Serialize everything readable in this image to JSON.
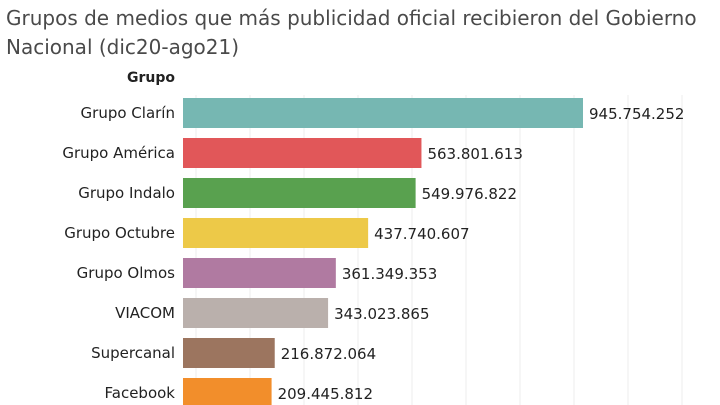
{
  "chart_data": {
    "type": "bar",
    "orientation": "horizontal",
    "title": "Grupos de medios que más publicidad oficial recibieron del Gobierno Nacional (dic20-ago21)",
    "row_header": "Grupo",
    "categories": [
      "Grupo Clarín",
      "Grupo América",
      "Grupo Indalo",
      "Grupo Octubre",
      "Grupo Olmos",
      "VIACOM",
      "Supercanal",
      "Facebook"
    ],
    "values": [
      945754252,
      563801613,
      549976822,
      437740607,
      361349353,
      343023865,
      216872064,
      209445812
    ],
    "value_labels": [
      "945.754.252",
      "563.801.613",
      "549.976.822",
      "437.740.607",
      "361.349.353",
      "343.023.865",
      "216.872.064",
      "209.445.812"
    ],
    "colors": [
      "#76b7b2",
      "#e15759",
      "#59a14f",
      "#edc948",
      "#b07aa1",
      "#bab0ac",
      "#9c755f",
      "#f28e2b"
    ],
    "grid": true
  }
}
